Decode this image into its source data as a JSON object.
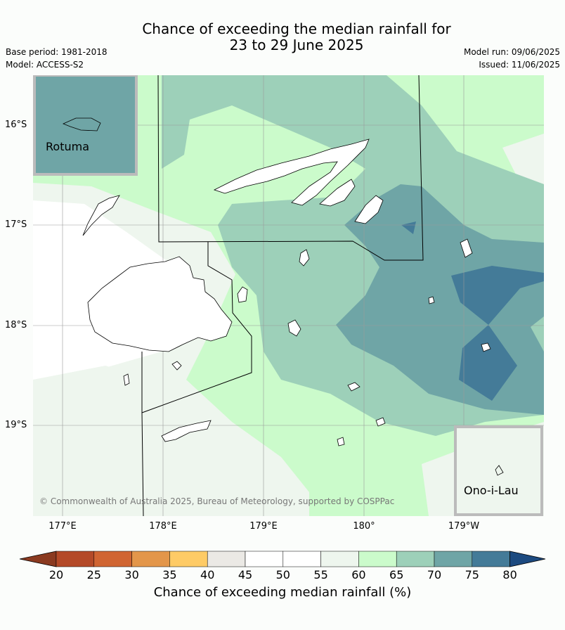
{
  "title": {
    "line1": "Chance of exceeding the median rainfall for",
    "line2": "23 to 29 June 2025"
  },
  "meta": {
    "base_period": "Base period: 1981-2018",
    "model": "Model: ACCESS-S2",
    "model_run": "Model run: 09/06/2025",
    "issued": "Issued: 11/06/2025"
  },
  "map": {
    "lat_labels": [
      "16°S",
      "17°S",
      "18°S",
      "19°S"
    ],
    "lon_labels": [
      "177°E",
      "178°E",
      "179°E",
      "180°",
      "179°W"
    ],
    "insets": {
      "top_left": "Rotuma",
      "bottom_right": "Ono-i-Lau"
    },
    "copyright": "© Commonwealth of Australia 2025, Bureau of Meteorology, supported by COSPPac"
  },
  "colorbar": {
    "label": "Chance of exceeding median rainfall (%)",
    "ticks": [
      "20",
      "25",
      "30",
      "35",
      "40",
      "45",
      "50",
      "55",
      "60",
      "65",
      "70",
      "75",
      "80"
    ],
    "colors": {
      "below_20": "#8b3a20",
      "20_25": "#b44a28",
      "25_30": "#d06532",
      "30_35": "#e3964a",
      "35_40": "#fecb66",
      "40_45": "#ebe9e5",
      "45_50": "#ffffff",
      "50_55": "#ffffff",
      "55_60": "#eef6ee",
      "60_65": "#cbfbcb",
      "65_70": "#9dd0b9",
      "70_75": "#6fa5a6",
      "75_80": "#447b98",
      "above_80": "#1c4a80"
    }
  }
}
